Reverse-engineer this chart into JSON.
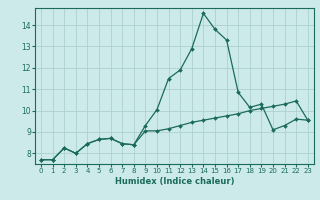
{
  "xlabel": "Humidex (Indice chaleur)",
  "ylabel": "",
  "bg_color": "#cdeaea",
  "grid_color": "#aed0d0",
  "line_color": "#1a6b5a",
  "xlim": [
    -0.5,
    23.5
  ],
  "ylim": [
    7.5,
    14.8
  ],
  "yticks": [
    8,
    9,
    10,
    11,
    12,
    13,
    14
  ],
  "xticks": [
    0,
    1,
    2,
    3,
    4,
    5,
    6,
    7,
    8,
    9,
    10,
    11,
    12,
    13,
    14,
    15,
    16,
    17,
    18,
    19,
    20,
    21,
    22,
    23
  ],
  "curve1_x": [
    0,
    1,
    2,
    3,
    4,
    5,
    6,
    7,
    8,
    9,
    10,
    11,
    12,
    13,
    14,
    15,
    16,
    17,
    18,
    19,
    20,
    21,
    22,
    23
  ],
  "curve1_y": [
    7.7,
    7.7,
    8.25,
    8.0,
    8.45,
    8.65,
    8.7,
    8.45,
    8.4,
    9.3,
    10.05,
    11.5,
    11.9,
    12.9,
    14.55,
    13.8,
    13.3,
    10.85,
    10.15,
    10.3,
    9.1,
    9.3,
    9.6,
    9.55
  ],
  "curve2_x": [
    0,
    1,
    2,
    3,
    4,
    5,
    6,
    7,
    8,
    9,
    10,
    11,
    12,
    13,
    14,
    15,
    16,
    17,
    18,
    19,
    20,
    21,
    22,
    23
  ],
  "curve2_y": [
    7.7,
    7.7,
    8.25,
    8.0,
    8.45,
    8.65,
    8.7,
    8.45,
    8.4,
    9.05,
    9.05,
    9.15,
    9.3,
    9.45,
    9.55,
    9.65,
    9.75,
    9.85,
    10.0,
    10.1,
    10.2,
    10.3,
    10.45,
    9.55
  ]
}
